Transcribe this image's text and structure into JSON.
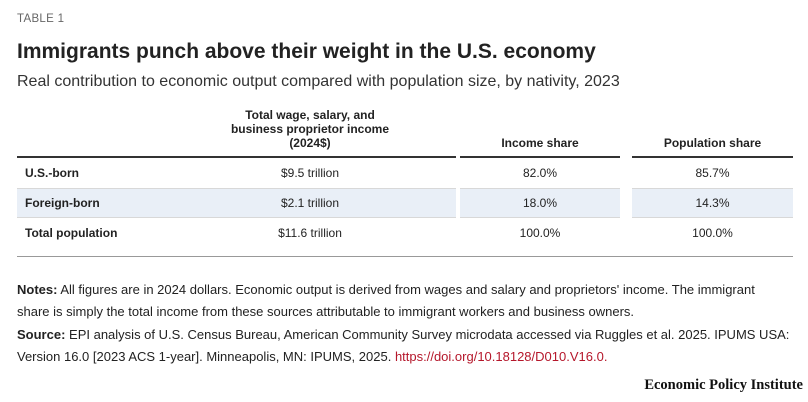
{
  "header": {
    "label": "TABLE 1",
    "title": "Immigrants punch above their weight in the U.S. economy",
    "subtitle": "Real contribution to economic output compared with population size, by nativity, 2023"
  },
  "table": {
    "columns": [
      "",
      "Total wage, salary, and business proprietor income (2024$)",
      "Income share",
      "Population share"
    ],
    "rows": [
      {
        "label": "U.S.-born",
        "income": "$9.5 trillion",
        "income_share": "82.0%",
        "population_share": "85.7%"
      },
      {
        "label": "Foreign-born",
        "income": "$2.1 trillion",
        "income_share": "18.0%",
        "population_share": "14.3%"
      },
      {
        "label": "Total population",
        "income": "$11.6 trillion",
        "income_share": "100.0%",
        "population_share": "100.0%"
      }
    ]
  },
  "notes": {
    "label": "Notes:",
    "text": "All figures are in 2024 dollars. Economic output is derived from wages and salary and proprietors' income. The immigrant share is simply the total income from these sources attributable to immigrant workers and business owners."
  },
  "source": {
    "label": "Source:",
    "text": "EPI analysis of U.S. Census Bureau, American Community Survey microdata accessed via Ruggles et al. 2025. IPUMS USA: Version 16.0 [2023 ACS 1-year]. Minneapolis, MN: IPUMS, 2025.",
    "link": "https://doi.org/10.18128/D010.V16.0."
  },
  "brand": "Economic Policy Institute"
}
